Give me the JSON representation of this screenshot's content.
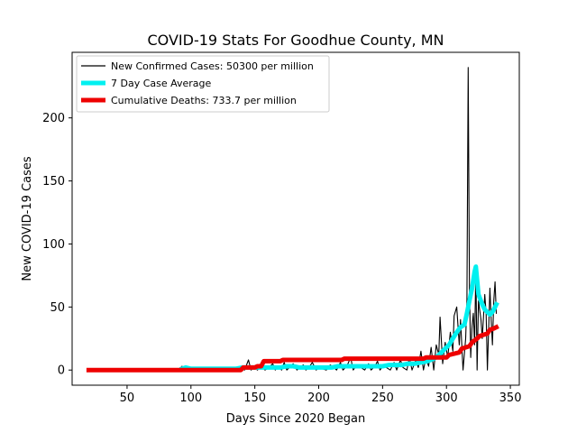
{
  "chart_data": {
    "type": "line",
    "title": "COVID-19 Stats For Goodhue County, MN",
    "xlabel": "Days Since 2020 Began",
    "ylabel": "New COVID-19 Cases",
    "xlim": [
      7,
      357
    ],
    "ylim": [
      -12,
      252
    ],
    "xticks": [
      50,
      100,
      150,
      200,
      250,
      300,
      350
    ],
    "yticks": [
      0,
      50,
      100,
      150,
      200
    ],
    "grid": false,
    "legend_position": "top-left",
    "series": [
      {
        "name": "New Confirmed Cases: 50300 per million",
        "color": "#000000",
        "points": [
          [
            20,
            0
          ],
          [
            60,
            0
          ],
          [
            90,
            0
          ],
          [
            93,
            3
          ],
          [
            95,
            0
          ],
          [
            98,
            2
          ],
          [
            100,
            0
          ],
          [
            103,
            1
          ],
          [
            106,
            0
          ],
          [
            110,
            2
          ],
          [
            113,
            0
          ],
          [
            118,
            1
          ],
          [
            122,
            0
          ],
          [
            127,
            2
          ],
          [
            130,
            0
          ],
          [
            133,
            1
          ],
          [
            136,
            0
          ],
          [
            140,
            2
          ],
          [
            142,
            0
          ],
          [
            145,
            8
          ],
          [
            147,
            0
          ],
          [
            150,
            2
          ],
          [
            152,
            0
          ],
          [
            155,
            3
          ],
          [
            158,
            0
          ],
          [
            161,
            2
          ],
          [
            164,
            5
          ],
          [
            166,
            0
          ],
          [
            168,
            3
          ],
          [
            171,
            0
          ],
          [
            173,
            6
          ],
          [
            175,
            0
          ],
          [
            178,
            3
          ],
          [
            180,
            5
          ],
          [
            183,
            0
          ],
          [
            185,
            2
          ],
          [
            188,
            4
          ],
          [
            190,
            0
          ],
          [
            193,
            3
          ],
          [
            195,
            6
          ],
          [
            198,
            0
          ],
          [
            201,
            3
          ],
          [
            203,
            1
          ],
          [
            206,
            0
          ],
          [
            209,
            4
          ],
          [
            212,
            2
          ],
          [
            214,
            0
          ],
          [
            217,
            6
          ],
          [
            219,
            0
          ],
          [
            222,
            3
          ],
          [
            225,
            10
          ],
          [
            227,
            0
          ],
          [
            230,
            4
          ],
          [
            233,
            2
          ],
          [
            236,
            0
          ],
          [
            239,
            5
          ],
          [
            241,
            0
          ],
          [
            244,
            3
          ],
          [
            246,
            7
          ],
          [
            248,
            0
          ],
          [
            251,
            4
          ],
          [
            253,
            2
          ],
          [
            256,
            0
          ],
          [
            259,
            6
          ],
          [
            261,
            0
          ],
          [
            264,
            8
          ],
          [
            266,
            2
          ],
          [
            269,
            0
          ],
          [
            271,
            10
          ],
          [
            273,
            0
          ],
          [
            276,
            8
          ],
          [
            278,
            2
          ],
          [
            280,
            15
          ],
          [
            282,
            0
          ],
          [
            284,
            10
          ],
          [
            286,
            3
          ],
          [
            288,
            18
          ],
          [
            290,
            0
          ],
          [
            292,
            20
          ],
          [
            294,
            12
          ],
          [
            295,
            42
          ],
          [
            297,
            5
          ],
          [
            299,
            22
          ],
          [
            301,
            10
          ],
          [
            303,
            30
          ],
          [
            305,
            15
          ],
          [
            306,
            43
          ],
          [
            308,
            50
          ],
          [
            310,
            20
          ],
          [
            311,
            40
          ],
          [
            313,
            0
          ],
          [
            315,
            25
          ],
          [
            316,
            55
          ],
          [
            317,
            240
          ],
          [
            318,
            65
          ],
          [
            319,
            10
          ],
          [
            320,
            35
          ],
          [
            321,
            45
          ],
          [
            322,
            20
          ],
          [
            323,
            80
          ],
          [
            324,
            0
          ],
          [
            325,
            55
          ],
          [
            327,
            40
          ],
          [
            328,
            25
          ],
          [
            330,
            60
          ],
          [
            331,
            45
          ],
          [
            332,
            0
          ],
          [
            334,
            65
          ],
          [
            335,
            40
          ],
          [
            336,
            20
          ],
          [
            337,
            55
          ],
          [
            338,
            70
          ],
          [
            339,
            45
          ]
        ]
      },
      {
        "name": "7 Day Case Average",
        "color": "#00f0f0",
        "points": [
          [
            93,
            1
          ],
          [
            96,
            2
          ],
          [
            100,
            1
          ],
          [
            104,
            1
          ],
          [
            108,
            1
          ],
          [
            112,
            1
          ],
          [
            116,
            1
          ],
          [
            120,
            1
          ],
          [
            125,
            1
          ],
          [
            130,
            1
          ],
          [
            135,
            1
          ],
          [
            140,
            2
          ],
          [
            145,
            2
          ],
          [
            150,
            2
          ],
          [
            155,
            2
          ],
          [
            160,
            2
          ],
          [
            165,
            2
          ],
          [
            170,
            2
          ],
          [
            175,
            3
          ],
          [
            180,
            3
          ],
          [
            185,
            2
          ],
          [
            190,
            2
          ],
          [
            195,
            2
          ],
          [
            200,
            2
          ],
          [
            205,
            2
          ],
          [
            210,
            2
          ],
          [
            215,
            3
          ],
          [
            220,
            3
          ],
          [
            225,
            3
          ],
          [
            230,
            3
          ],
          [
            235,
            3
          ],
          [
            240,
            3
          ],
          [
            245,
            3
          ],
          [
            250,
            3
          ],
          [
            255,
            4
          ],
          [
            260,
            4
          ],
          [
            265,
            4
          ],
          [
            270,
            5
          ],
          [
            275,
            5
          ],
          [
            280,
            6
          ],
          [
            285,
            7
          ],
          [
            290,
            9
          ],
          [
            293,
            11
          ],
          [
            296,
            14
          ],
          [
            299,
            17
          ],
          [
            302,
            20
          ],
          [
            305,
            25
          ],
          [
            308,
            30
          ],
          [
            311,
            34
          ],
          [
            314,
            36
          ],
          [
            316,
            45
          ],
          [
            318,
            55
          ],
          [
            320,
            65
          ],
          [
            322,
            78
          ],
          [
            323,
            82
          ],
          [
            325,
            60
          ],
          [
            328,
            52
          ],
          [
            330,
            48
          ],
          [
            332,
            46
          ],
          [
            334,
            44
          ],
          [
            336,
            46
          ],
          [
            338,
            50
          ],
          [
            339,
            52
          ]
        ]
      },
      {
        "name": "Cumulative Deaths: 733.7 per million",
        "color": "#ee0000",
        "points": [
          [
            20,
            0
          ],
          [
            139,
            0
          ],
          [
            141,
            2
          ],
          [
            150,
            2
          ],
          [
            152,
            3
          ],
          [
            155,
            3
          ],
          [
            157,
            7
          ],
          [
            170,
            7
          ],
          [
            172,
            8
          ],
          [
            218,
            8
          ],
          [
            220,
            9
          ],
          [
            282,
            9
          ],
          [
            284,
            10
          ],
          [
            300,
            10
          ],
          [
            302,
            12
          ],
          [
            310,
            14
          ],
          [
            312,
            17
          ],
          [
            318,
            19
          ],
          [
            320,
            22
          ],
          [
            324,
            25
          ],
          [
            326,
            27
          ],
          [
            332,
            29
          ],
          [
            334,
            32
          ],
          [
            337,
            33
          ],
          [
            339,
            34
          ]
        ]
      }
    ]
  }
}
